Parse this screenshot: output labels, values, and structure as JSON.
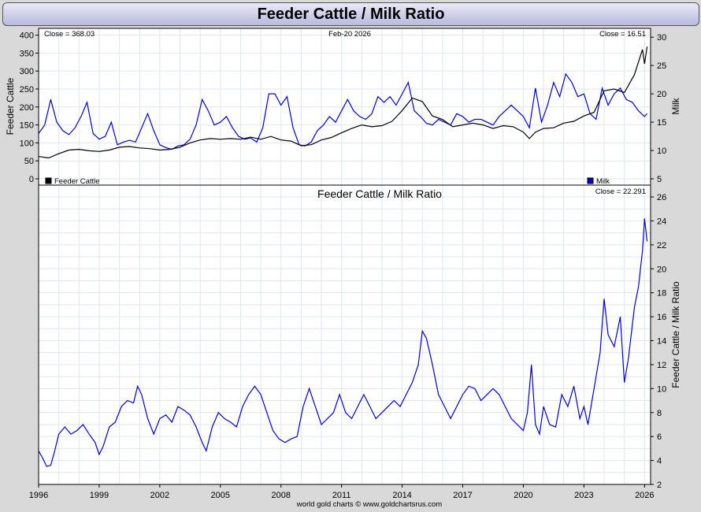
{
  "title": "Feeder Cattle / Milk Ratio",
  "footer": "world gold charts © www.goldchartsrus.com",
  "colors": {
    "cattle": "#000000",
    "milk": "#0000dd",
    "ratio": "#0000dd",
    "grid": "#dfe6f0"
  },
  "chart_data": [
    {
      "type": "line",
      "left_axis_label": "Feeder Cattle",
      "right_axis_label": "Milk",
      "date_label": "Feb-20  2026",
      "left_close": "Close = 368.03",
      "right_close": "Close = 16.51",
      "left_ylim": [
        0,
        410
      ],
      "right_ylim": [
        5,
        31
      ],
      "left_ticks": [
        "0",
        "50",
        "100",
        "150",
        "200",
        "250",
        "300",
        "350",
        "400"
      ],
      "right_ticks": [
        "5",
        "10",
        "15",
        "20",
        "25",
        "30"
      ],
      "legend": [
        "Feeder Cattle",
        "Milk"
      ],
      "series": [
        {
          "name": "Feeder Cattle",
          "axis": "left",
          "x": [
            1996.0,
            1996.5,
            1997.0,
            1997.5,
            1998.0,
            1998.5,
            1999.0,
            1999.5,
            2000.0,
            2000.5,
            2001.0,
            2001.5,
            2002.0,
            2002.5,
            2003.0,
            2003.5,
            2004.0,
            2004.5,
            2005.0,
            2005.5,
            2006.0,
            2006.5,
            2007.0,
            2007.5,
            2008.0,
            2008.5,
            2009.0,
            2009.5,
            2010.0,
            2010.5,
            2011.0,
            2011.5,
            2012.0,
            2012.5,
            2013.0,
            2013.5,
            2014.0,
            2014.5,
            2015.0,
            2015.5,
            2016.0,
            2016.5,
            2017.0,
            2017.5,
            2018.0,
            2018.5,
            2019.0,
            2019.5,
            2020.0,
            2020.3,
            2020.6,
            2021.0,
            2021.5,
            2022.0,
            2022.5,
            2023.0,
            2023.5,
            2024.0,
            2024.5,
            2025.0,
            2025.5,
            2025.9,
            2026.0,
            2026.13
          ],
          "values": [
            62,
            58,
            70,
            80,
            82,
            78,
            76,
            80,
            88,
            90,
            86,
            84,
            80,
            82,
            88,
            100,
            108,
            112,
            110,
            112,
            110,
            116,
            110,
            118,
            108,
            105,
            92,
            95,
            108,
            115,
            128,
            140,
            150,
            145,
            148,
            160,
            190,
            225,
            215,
            175,
            165,
            145,
            150,
            155,
            150,
            140,
            148,
            145,
            130,
            112,
            130,
            140,
            142,
            155,
            160,
            175,
            185,
            245,
            250,
            240,
            290,
            360,
            320,
            368
          ]
        },
        {
          "name": "Milk",
          "axis": "right",
          "x": [
            1996.0,
            1996.3,
            1996.6,
            1996.9,
            1997.2,
            1997.5,
            1997.8,
            1998.1,
            1998.4,
            1998.7,
            1999.0,
            1999.3,
            1999.6,
            1999.9,
            2000.2,
            2000.5,
            2000.8,
            2001.1,
            2001.4,
            2001.7,
            2002.0,
            2002.3,
            2002.6,
            2002.9,
            2003.2,
            2003.5,
            2003.8,
            2004.1,
            2004.4,
            2004.7,
            2005.0,
            2005.3,
            2005.6,
            2005.9,
            2006.2,
            2006.5,
            2006.8,
            2007.1,
            2007.4,
            2007.7,
            2008.0,
            2008.3,
            2008.6,
            2008.9,
            2009.2,
            2009.5,
            2009.8,
            2010.1,
            2010.4,
            2010.7,
            2011.0,
            2011.3,
            2011.6,
            2011.9,
            2012.2,
            2012.5,
            2012.8,
            2013.1,
            2013.4,
            2013.7,
            2014.0,
            2014.3,
            2014.6,
            2014.9,
            2015.2,
            2015.5,
            2015.8,
            2016.1,
            2016.4,
            2016.7,
            2017.0,
            2017.3,
            2017.6,
            2017.9,
            2018.2,
            2018.5,
            2018.8,
            2019.1,
            2019.4,
            2019.7,
            2020.0,
            2020.3,
            2020.6,
            2020.9,
            2021.2,
            2021.5,
            2021.8,
            2022.1,
            2022.4,
            2022.7,
            2023.0,
            2023.3,
            2023.6,
            2023.9,
            2024.2,
            2024.5,
            2024.8,
            2025.1,
            2025.4,
            2025.7,
            2026.0,
            2026.13
          ],
          "values": [
            13,
            14.5,
            19,
            15,
            13.5,
            12.8,
            14,
            16,
            18.5,
            13,
            12,
            12.5,
            15,
            11,
            11.5,
            11.8,
            11.5,
            14,
            16.5,
            13.5,
            11,
            10.5,
            10.2,
            10.8,
            11,
            12,
            14.5,
            19,
            17,
            14.5,
            15,
            16,
            14,
            12.5,
            12,
            12.2,
            11.5,
            14,
            20,
            20,
            18,
            19.5,
            14,
            11,
            10.8,
            11.5,
            13.5,
            14.5,
            16,
            15,
            17,
            19,
            17,
            16,
            15.5,
            16.5,
            19.5,
            18.5,
            19.5,
            18,
            20,
            22,
            17,
            16,
            14.8,
            14.5,
            15.5,
            15,
            14.5,
            16.5,
            16,
            15,
            15.5,
            15.5,
            15,
            14.5,
            16,
            17,
            18,
            17,
            16,
            14,
            21,
            15,
            18,
            22,
            19.5,
            23.5,
            22,
            19.5,
            20,
            16.5,
            15.5,
            21,
            18,
            20,
            21,
            19,
            18.5,
            17,
            16,
            16.51
          ]
        }
      ]
    },
    {
      "type": "line",
      "title": "Feeder Cattle  /  Milk Ratio",
      "right_axis_label": "Feeder Cattle / Milk Ratio",
      "close": "Close = 22.291",
      "ylim": [
        2,
        26
      ],
      "ticks": [
        "2",
        "4",
        "6",
        "8",
        "10",
        "12",
        "14",
        "16",
        "18",
        "20",
        "22",
        "24",
        "26"
      ],
      "xlim": [
        1996,
        2026.3
      ],
      "x_ticks": [
        "1996",
        "1999",
        "2002",
        "2005",
        "2008",
        "2011",
        "2014",
        "2017",
        "2020",
        "2023",
        "2026"
      ],
      "series": [
        {
          "name": "Feeder Cattle / Milk Ratio",
          "x": [
            1996.0,
            1996.2,
            1996.4,
            1996.6,
            1996.8,
            1997.0,
            1997.3,
            1997.6,
            1997.9,
            1998.2,
            1998.5,
            1998.8,
            1999.0,
            1999.2,
            1999.5,
            1999.8,
            2000.1,
            2000.4,
            2000.7,
            2000.9,
            2001.1,
            2001.4,
            2001.7,
            2002.0,
            2002.3,
            2002.6,
            2002.9,
            2003.2,
            2003.5,
            2003.8,
            2004.1,
            2004.3,
            2004.6,
            2004.9,
            2005.2,
            2005.5,
            2005.8,
            2006.1,
            2006.4,
            2006.7,
            2007.0,
            2007.3,
            2007.6,
            2007.9,
            2008.2,
            2008.5,
            2008.8,
            2009.1,
            2009.4,
            2009.7,
            2010.0,
            2010.3,
            2010.6,
            2010.9,
            2011.2,
            2011.5,
            2011.8,
            2012.1,
            2012.4,
            2012.7,
            2013.0,
            2013.3,
            2013.6,
            2013.9,
            2014.2,
            2014.5,
            2014.8,
            2015.0,
            2015.2,
            2015.5,
            2015.8,
            2016.1,
            2016.4,
            2016.7,
            2017.0,
            2017.3,
            2017.6,
            2017.9,
            2018.2,
            2018.5,
            2018.8,
            2019.1,
            2019.4,
            2019.7,
            2020.0,
            2020.2,
            2020.4,
            2020.6,
            2020.8,
            2021.0,
            2021.3,
            2021.6,
            2021.9,
            2022.2,
            2022.5,
            2022.8,
            2023.0,
            2023.2,
            2023.5,
            2023.8,
            2024.0,
            2024.2,
            2024.5,
            2024.8,
            2025.0,
            2025.2,
            2025.5,
            2025.7,
            2025.9,
            2026.0,
            2026.13
          ],
          "values": [
            4.8,
            4.2,
            3.5,
            3.6,
            4.8,
            6.2,
            6.8,
            6.2,
            6.5,
            7.0,
            6.2,
            5.5,
            4.5,
            5.2,
            6.8,
            7.2,
            8.5,
            9.0,
            8.8,
            10.2,
            9.5,
            7.5,
            6.2,
            7.5,
            7.8,
            7.2,
            8.5,
            8.2,
            7.8,
            6.8,
            5.5,
            4.8,
            6.8,
            8.0,
            7.5,
            7.2,
            6.8,
            8.5,
            9.5,
            10.2,
            9.5,
            8.0,
            6.5,
            5.8,
            5.5,
            5.8,
            6.0,
            8.5,
            10.0,
            8.5,
            7.0,
            7.5,
            8.0,
            9.5,
            8.0,
            7.5,
            8.5,
            9.5,
            8.5,
            7.5,
            8.0,
            8.5,
            9.0,
            8.5,
            9.5,
            10.5,
            12.0,
            14.8,
            14.2,
            12.0,
            9.5,
            8.5,
            7.5,
            8.5,
            9.5,
            10.2,
            10.0,
            9.0,
            9.5,
            10.0,
            9.5,
            8.5,
            7.5,
            7.0,
            6.5,
            8.0,
            12.0,
            7.0,
            6.2,
            8.5,
            7.0,
            6.8,
            9.5,
            8.5,
            10.2,
            7.5,
            8.5,
            7.0,
            10.0,
            13.0,
            17.5,
            14.5,
            13.5,
            16.0,
            10.5,
            12.5,
            16.8,
            18.5,
            21.5,
            24.2,
            22.29
          ]
        }
      ]
    }
  ]
}
